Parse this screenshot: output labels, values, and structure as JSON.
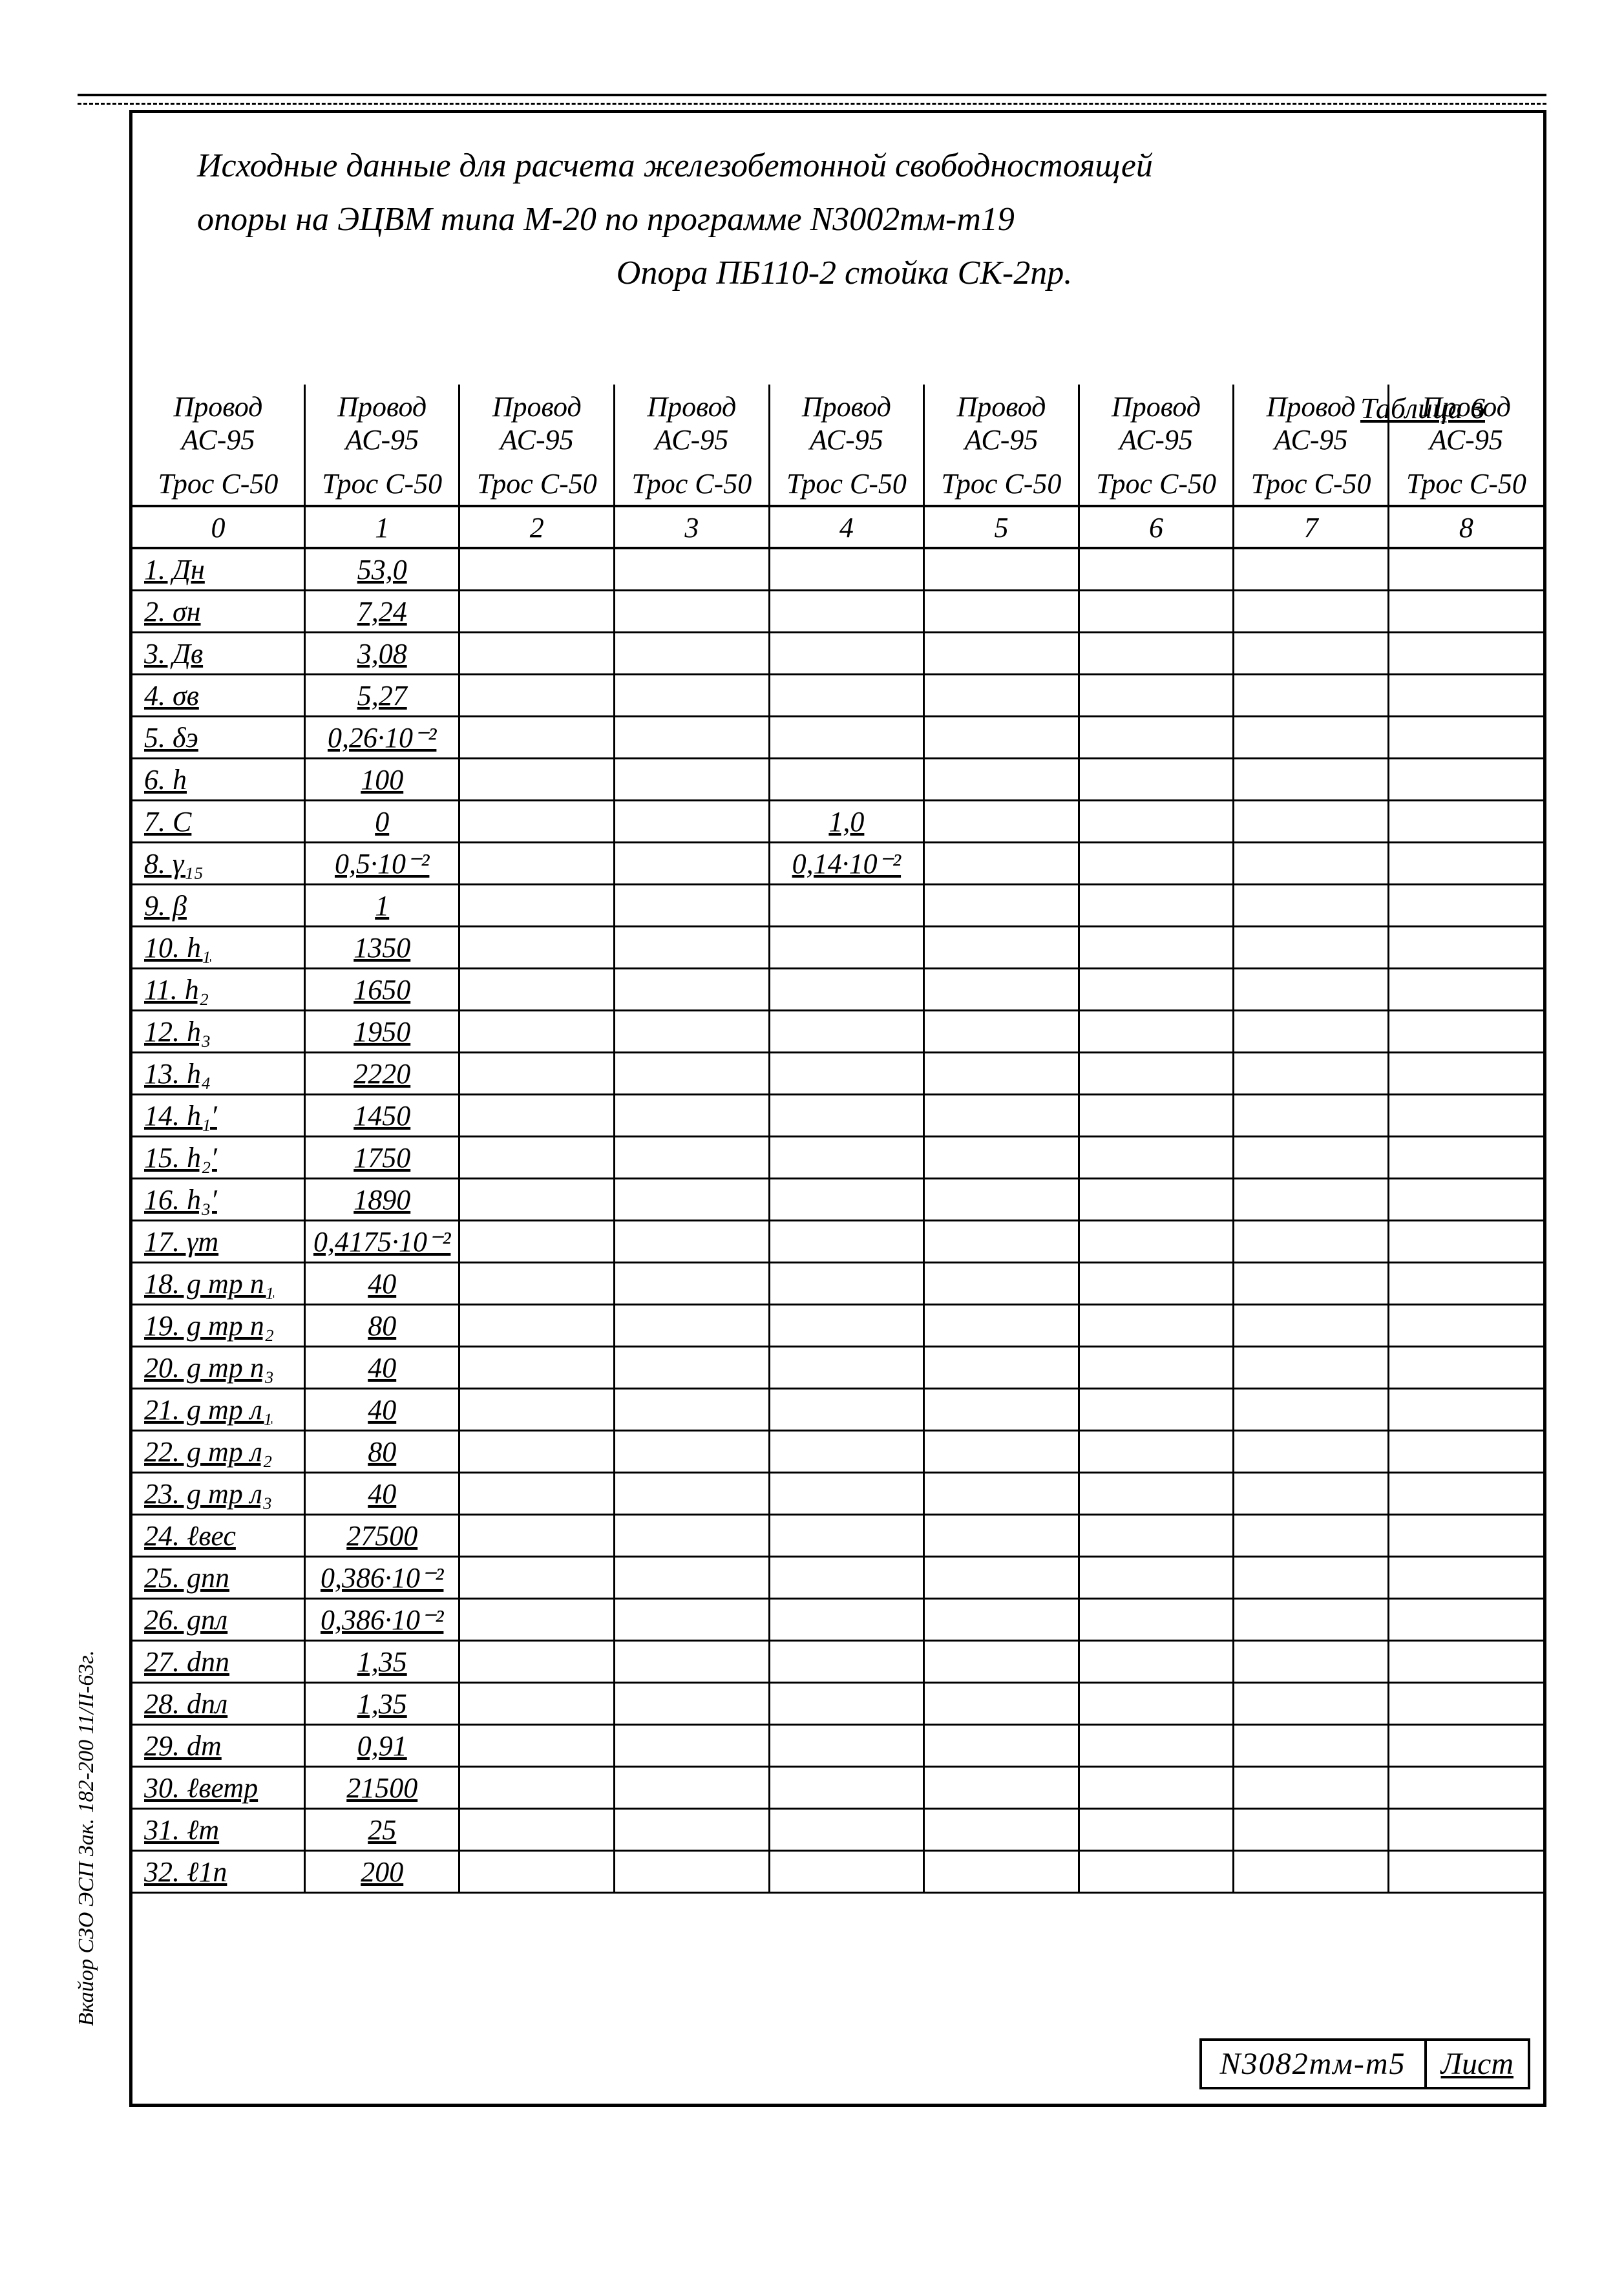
{
  "colors": {
    "ink": "#000000",
    "paper": "#ffffff"
  },
  "title": {
    "line1": "Исходные данные для расчета железобетонной свободностоящей",
    "line2": "опоры на ЭЦВМ типа М-20 по программе N3002тм-т19",
    "line3": "Опора ПБ110-2 стойка СК-2пр."
  },
  "table_label": "Таблица 6",
  "footer": {
    "doc_no": "N3082тм-т5",
    "sheet_word": "Лист"
  },
  "side_note": "Вкайор СЗО ЭСП  Зак. 182-200 11/II-63г.",
  "headers": {
    "type": "table",
    "top": [
      "Провод АС-95",
      "Провод АС-95",
      "Провод АС-95",
      "Провод АС-95",
      "Провод АС-95",
      "Провод АС-95",
      "Провод АС-95",
      "Провод АС-95",
      "Провод АС-95"
    ],
    "sub": [
      "Трос С-50",
      "Трос С-50",
      "Трос С-50",
      "Трос С-50",
      "Трос С-50",
      "Трос С-50",
      "Трос С-50",
      "Трос С-50",
      "Трос С-50"
    ],
    "idx": [
      "0",
      "1",
      "2",
      "3",
      "4",
      "5",
      "6",
      "7",
      "8"
    ]
  },
  "rows": [
    {
      "label": "1. Дн",
      "vals": [
        "53,0",
        "",
        "",
        "",
        "",
        "",
        "",
        ""
      ]
    },
    {
      "label": "2. σн",
      "vals": [
        "7,24",
        "",
        "",
        "",
        "",
        "",
        "",
        ""
      ]
    },
    {
      "label": "3. Дв",
      "vals": [
        "3,08",
        "",
        "",
        "",
        "",
        "",
        "",
        ""
      ]
    },
    {
      "label": "4. σв",
      "vals": [
        "5,27",
        "",
        "",
        "",
        "",
        "",
        "",
        ""
      ]
    },
    {
      "label": "5. δэ",
      "vals": [
        "0,26·10⁻²",
        "",
        "",
        "",
        "",
        "",
        "",
        ""
      ]
    },
    {
      "label": "6. h",
      "vals": [
        "100",
        "",
        "",
        "",
        "",
        "",
        "",
        ""
      ]
    },
    {
      "label": "7. C",
      "vals": [
        "0",
        "",
        "",
        "1,0",
        "",
        "",
        "",
        ""
      ]
    },
    {
      "label": "8. γ₁₅",
      "vals": [
        "0,5·10⁻²",
        "",
        "",
        "0,14·10⁻²",
        "",
        "",
        "",
        ""
      ]
    },
    {
      "label": "9. β",
      "vals": [
        "1",
        "",
        "",
        "",
        "",
        "",
        "",
        ""
      ]
    },
    {
      "label": "10. h₁",
      "vals": [
        "1350",
        "",
        "",
        "",
        "",
        "",
        "",
        ""
      ]
    },
    {
      "label": "11. h₂",
      "vals": [
        "1650",
        "",
        "",
        "",
        "",
        "",
        "",
        ""
      ]
    },
    {
      "label": "12. h₃",
      "vals": [
        "1950",
        "",
        "",
        "",
        "",
        "",
        "",
        ""
      ]
    },
    {
      "label": "13. h₄",
      "vals": [
        "2220",
        "",
        "",
        "",
        "",
        "",
        "",
        ""
      ]
    },
    {
      "label": "14. h₁′",
      "vals": [
        "1450",
        "",
        "",
        "",
        "",
        "",
        "",
        ""
      ]
    },
    {
      "label": "15. h₂′",
      "vals": [
        "1750",
        "",
        "",
        "",
        "",
        "",
        "",
        ""
      ]
    },
    {
      "label": "16. h₃′",
      "vals": [
        "1890",
        "",
        "",
        "",
        "",
        "",
        "",
        ""
      ]
    },
    {
      "label": "17. γт",
      "vals": [
        "0,4175·10⁻²",
        "",
        "",
        "",
        "",
        "",
        "",
        ""
      ]
    },
    {
      "label": "18. g тр п₁",
      "vals": [
        "40",
        "",
        "",
        "",
        "",
        "",
        "",
        ""
      ]
    },
    {
      "label": "19. g тр п₂",
      "vals": [
        "80",
        "",
        "",
        "",
        "",
        "",
        "",
        ""
      ]
    },
    {
      "label": "20. g тр п₃",
      "vals": [
        "40",
        "",
        "",
        "",
        "",
        "",
        "",
        ""
      ]
    },
    {
      "label": "21. g тр л₁",
      "vals": [
        "40",
        "",
        "",
        "",
        "",
        "",
        "",
        ""
      ]
    },
    {
      "label": "22. g тр л₂",
      "vals": [
        "80",
        "",
        "",
        "",
        "",
        "",
        "",
        ""
      ]
    },
    {
      "label": "23. g тр л₃",
      "vals": [
        "40",
        "",
        "",
        "",
        "",
        "",
        "",
        ""
      ]
    },
    {
      "label": "24. ℓвес",
      "vals": [
        "27500",
        "",
        "",
        "",
        "",
        "",
        "",
        ""
      ]
    },
    {
      "label": "25. gпп",
      "vals": [
        "0,386·10⁻²",
        "",
        "",
        "",
        "",
        "",
        "",
        ""
      ]
    },
    {
      "label": "26. gпл",
      "vals": [
        "0,386·10⁻²",
        "",
        "",
        "",
        "",
        "",
        "",
        ""
      ]
    },
    {
      "label": "27. dпп",
      "vals": [
        "1,35",
        "",
        "",
        "",
        "",
        "",
        "",
        ""
      ]
    },
    {
      "label": "28. dпл",
      "vals": [
        "1,35",
        "",
        "",
        "",
        "",
        "",
        "",
        ""
      ]
    },
    {
      "label": "29. dт",
      "vals": [
        "0,91",
        "",
        "",
        "",
        "",
        "",
        "",
        ""
      ]
    },
    {
      "label": "30. ℓветр",
      "vals": [
        "21500",
        "",
        "",
        "",
        "",
        "",
        "",
        ""
      ]
    },
    {
      "label": "31. ℓт",
      "vals": [
        "25",
        "",
        "",
        "",
        "",
        "",
        "",
        ""
      ]
    },
    {
      "label": "32. ℓ1п",
      "vals": [
        "200",
        "",
        "",
        "",
        "",
        "",
        "",
        ""
      ]
    }
  ],
  "column_widths_pct": [
    12.2,
    10.97,
    10.97,
    10.97,
    10.97,
    10.97,
    10.97,
    10.97,
    10.97
  ],
  "font_sizes_pt": {
    "title": 39,
    "table_label": 34,
    "cells": 33,
    "footer": 36,
    "side_note": 25
  }
}
